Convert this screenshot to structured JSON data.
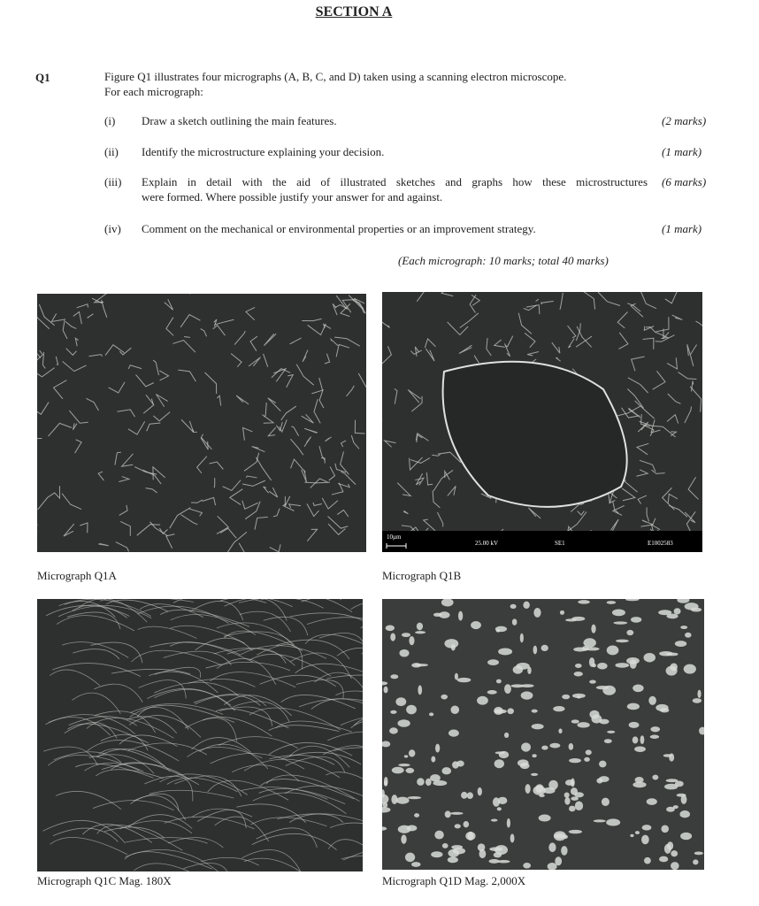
{
  "section_title": "SECTION A",
  "question": {
    "number": "Q1",
    "intro": [
      "Figure Q1 illustrates four micrographs (A, B, C, and D) taken using a scanning electron microscope.",
      "For each micrograph:"
    ],
    "parts": [
      {
        "label": "(i)",
        "text": [
          "Draw a sketch outlining the main features."
        ],
        "marks": "(2 marks)"
      },
      {
        "label": "(ii)",
        "text": [
          "Identify the microstructure explaining your decision."
        ],
        "marks": "(1 mark)"
      },
      {
        "label": "(iii)",
        "text": [
          "Explain in detail with the aid of illustrated sketches and graphs how these microstructures",
          "were formed. Where possible justify your answer for and against."
        ],
        "marks": "(6 marks)"
      },
      {
        "label": "(iv)",
        "text": [
          "Comment on the mechanical or environmental properties or an improvement strategy."
        ],
        "marks": "(1 mark)"
      }
    ],
    "total": "(Each micrograph: 10 marks; total 40 marks)"
  },
  "micrographs": [
    {
      "caption": "Micrograph Q1A"
    },
    {
      "caption": "Micrograph Q1B",
      "databar": [
        "10µm",
        "25.00 kV",
        "SE1",
        "E1002583"
      ]
    },
    {
      "caption": "Micrograph Q1C Mag. 180X"
    },
    {
      "caption": "Micrograph Q1D Mag. 2,000X"
    }
  ]
}
